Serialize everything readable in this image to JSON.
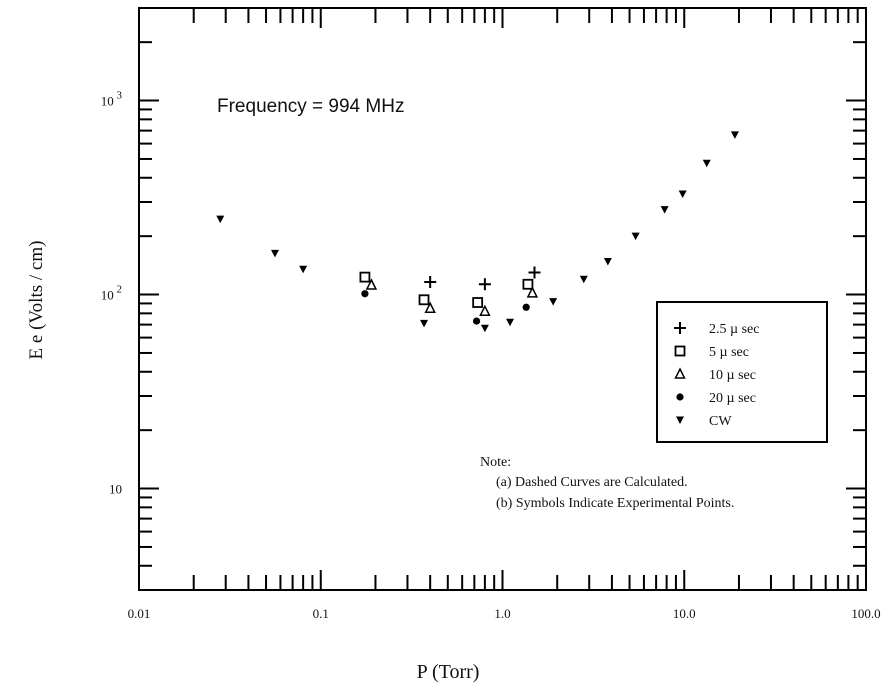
{
  "chart_data": {
    "type": "scatter",
    "annotation": "Frequency = 994 MHz",
    "xlabel": "P (Torr)",
    "ylabel": "E e (Volts / cm)",
    "x_scale": "log",
    "y_scale": "log",
    "xlim": [
      0.01,
      100
    ],
    "ylim": [
      3,
      3000
    ],
    "x_tick_labels": [
      {
        "value": 0.01,
        "label": "0.01"
      },
      {
        "value": 0.1,
        "label": "0.1"
      },
      {
        "value": 1,
        "label": "1.0"
      },
      {
        "value": 10,
        "label": "10.0"
      },
      {
        "value": 100,
        "label": "100.0"
      }
    ],
    "y_tick_labels": [
      {
        "value": 10,
        "base": "10",
        "exp": ""
      },
      {
        "value": 100,
        "base": "10",
        "exp": "2"
      },
      {
        "value": 1000,
        "base": "10",
        "exp": "3"
      }
    ],
    "grid": false,
    "legend_position": "right",
    "series": [
      {
        "name": "2.5 µ sec",
        "marker": "plus",
        "points": [
          [
            0.4,
            116
          ],
          [
            0.8,
            113
          ],
          [
            1.5,
            130
          ]
        ]
      },
      {
        "name": "5 µ sec",
        "marker": "square",
        "points": [
          [
            0.175,
            123
          ],
          [
            0.37,
            94
          ],
          [
            0.73,
            91
          ],
          [
            1.38,
            113
          ]
        ]
      },
      {
        "name": "10 µ sec",
        "marker": "triangle",
        "points": [
          [
            0.19,
            112
          ],
          [
            0.4,
            85
          ],
          [
            0.8,
            82
          ],
          [
            1.46,
            102
          ]
        ]
      },
      {
        "name": "20 µ sec",
        "marker": "circle",
        "points": [
          [
            0.175,
            101
          ],
          [
            0.72,
            73
          ],
          [
            1.35,
            86
          ]
        ]
      },
      {
        "name": "CW",
        "marker": "tri-down",
        "points": [
          [
            0.028,
            245
          ],
          [
            0.056,
            163
          ],
          [
            0.08,
            135
          ],
          [
            0.37,
            71
          ],
          [
            0.8,
            67
          ],
          [
            1.1,
            72
          ],
          [
            1.9,
            92
          ],
          [
            2.8,
            120
          ],
          [
            3.8,
            148
          ],
          [
            5.4,
            200
          ],
          [
            7.8,
            274
          ],
          [
            9.8,
            330
          ],
          [
            13.3,
            475
          ],
          [
            19.0,
            665
          ]
        ]
      }
    ],
    "notes": {
      "heading": "Note:",
      "lines": [
        "(a) Dashed Curves are Calculated.",
        "(b) Symbols Indicate Experimental Points."
      ]
    }
  }
}
